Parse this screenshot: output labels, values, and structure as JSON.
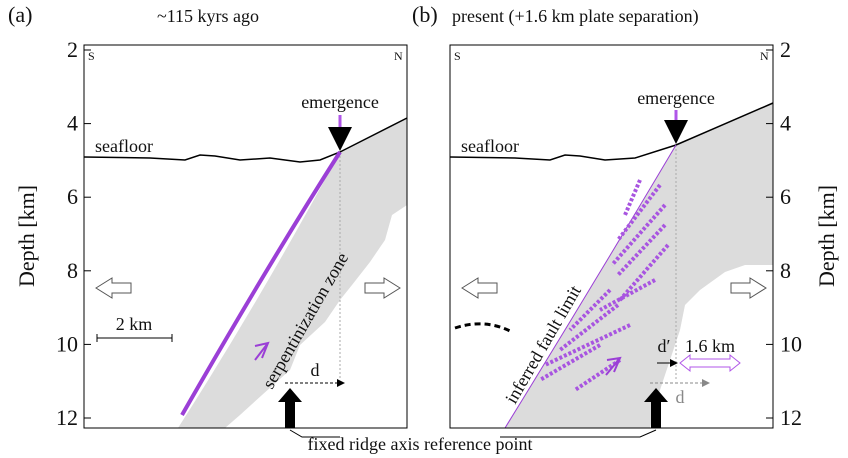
{
  "axis": {
    "label": "Depth [km]",
    "ylim": [
      2,
      12
    ],
    "yticks": [
      2,
      4,
      6,
      8,
      10,
      12
    ]
  },
  "panels": [
    {
      "label": "(a)",
      "title": "~115 kyrs ago",
      "south": "S",
      "north": "N",
      "seafloor": "seafloor",
      "emergence": "emergence",
      "zone": "serpentinization zone",
      "scale": "2 km",
      "d": "d"
    },
    {
      "label": "(b)",
      "title": "present  (+1.6 km plate separation)",
      "south": "S",
      "north": "N",
      "seafloor": "seafloor",
      "emergence": "emergence",
      "zone": "inferred fault limit",
      "d_prime": "d′",
      "separation": "1.6 km",
      "d": "d"
    }
  ],
  "footer": "fixed ridge axis reference point"
}
